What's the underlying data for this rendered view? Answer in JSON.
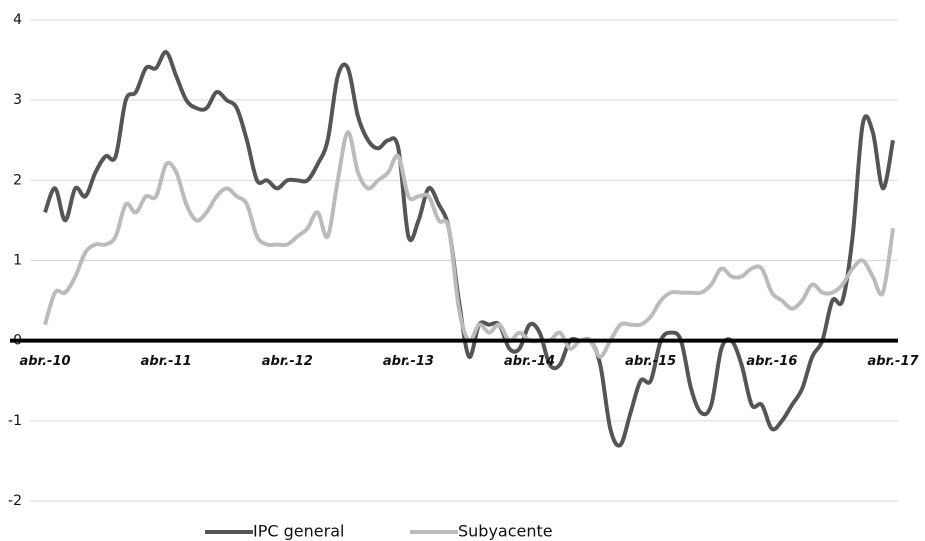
{
  "chart_data": {
    "type": "line",
    "categories": [
      "abr.-10",
      null,
      null,
      null,
      null,
      null,
      null,
      null,
      null,
      null,
      null,
      null,
      "abr.-11",
      null,
      null,
      null,
      null,
      null,
      null,
      null,
      null,
      null,
      null,
      null,
      "abr.-12",
      null,
      null,
      null,
      null,
      null,
      null,
      null,
      null,
      null,
      null,
      null,
      "abr.-13",
      null,
      null,
      null,
      null,
      null,
      null,
      null,
      null,
      null,
      null,
      null,
      "abr.-14",
      null,
      null,
      null,
      null,
      null,
      null,
      null,
      null,
      null,
      null,
      null,
      "abr.-15",
      null,
      null,
      null,
      null,
      null,
      null,
      null,
      null,
      null,
      null,
      null,
      "abr.-16",
      null,
      null,
      null,
      null,
      null,
      null,
      null,
      null,
      null,
      null,
      null,
      "abr.-17"
    ],
    "series": [
      {
        "name": "IPC general",
        "color": "#555555",
        "values": [
          1.6,
          1.9,
          1.5,
          1.9,
          1.8,
          2.1,
          2.3,
          2.3,
          3.0,
          3.1,
          3.4,
          3.4,
          3.6,
          3.3,
          3.0,
          2.9,
          2.9,
          3.1,
          3.0,
          2.9,
          2.5,
          2.0,
          2.0,
          1.9,
          2.0,
          2.0,
          2.0,
          2.2,
          2.5,
          3.3,
          3.4,
          2.8,
          2.5,
          2.4,
          2.5,
          2.4,
          1.3,
          1.5,
          1.9,
          1.7,
          1.4,
          0.5,
          -0.2,
          0.2,
          0.2,
          0.2,
          -0.1,
          -0.1,
          0.2,
          0.1,
          -0.3,
          -0.3,
          0.0,
          0.0,
          0.0,
          -0.3,
          -1.1,
          -1.3,
          -0.9,
          -0.5,
          -0.5,
          0.0,
          0.1,
          0.0,
          -0.6,
          -0.9,
          -0.8,
          -0.1,
          0.0,
          -0.3,
          -0.8,
          -0.8,
          -1.1,
          -1.0,
          -0.8,
          -0.6,
          -0.2,
          0.0,
          0.5,
          0.5,
          1.3,
          2.7,
          2.6,
          1.9,
          2.5
        ]
      },
      {
        "name": "Subyacente",
        "color": "#bbbbbb",
        "values": [
          0.2,
          0.6,
          0.6,
          0.8,
          1.1,
          1.2,
          1.2,
          1.3,
          1.7,
          1.6,
          1.8,
          1.8,
          2.2,
          2.1,
          1.7,
          1.5,
          1.6,
          1.8,
          1.9,
          1.8,
          1.7,
          1.3,
          1.2,
          1.2,
          1.2,
          1.3,
          1.4,
          1.6,
          1.3,
          2.0,
          2.6,
          2.1,
          1.9,
          2.0,
          2.1,
          2.3,
          1.8,
          1.8,
          1.8,
          1.5,
          1.4,
          0.4,
          0.0,
          0.2,
          0.1,
          0.2,
          0.0,
          0.1,
          0.0,
          0.0,
          0.0,
          0.1,
          -0.1,
          0.0,
          0.0,
          -0.2,
          0.0,
          0.2,
          0.2,
          0.2,
          0.3,
          0.5,
          0.6,
          0.6,
          0.6,
          0.6,
          0.7,
          0.9,
          0.8,
          0.8,
          0.9,
          0.9,
          0.6,
          0.5,
          0.4,
          0.5,
          0.7,
          0.6,
          0.6,
          0.7,
          0.9,
          1.0,
          0.8,
          0.6,
          1.4
        ]
      }
    ],
    "ylim": [
      -2,
      4
    ],
    "yticks": [
      -2,
      -1,
      0,
      1,
      2,
      3,
      4
    ],
    "grid": true,
    "legend": "bottom"
  }
}
